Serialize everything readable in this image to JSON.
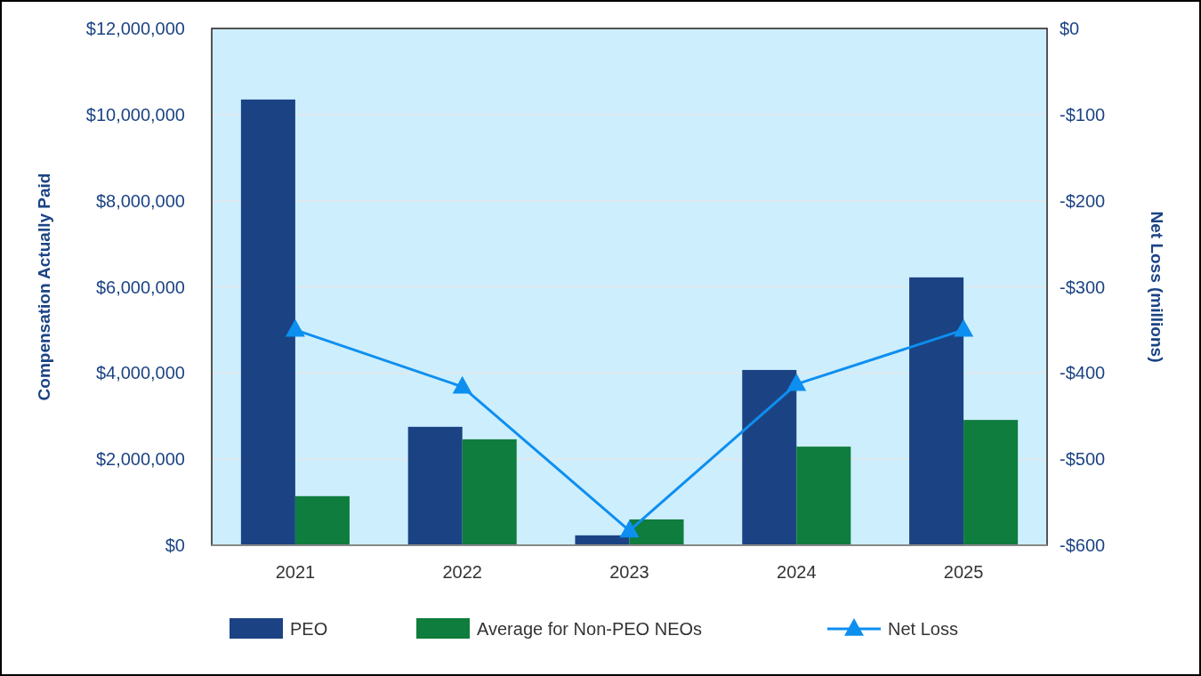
{
  "chart_data": {
    "type": "bar",
    "categories": [
      "2021",
      "2022",
      "2023",
      "2024",
      "2025"
    ],
    "ylabel": "Compensation Actually Paid",
    "y2label": "Net Loss (millions)",
    "ylim": [
      0,
      12000000
    ],
    "yticks": [
      {
        "value": 0,
        "label": "$0"
      },
      {
        "value": 2000000,
        "label": "$2,000,000"
      },
      {
        "value": 4000000,
        "label": "$4,000,000"
      },
      {
        "value": 6000000,
        "label": "$6,000,000"
      },
      {
        "value": 8000000,
        "label": "$8,000,000"
      },
      {
        "value": 10000000,
        "label": "$10,000,000"
      },
      {
        "value": 12000000,
        "label": "$12,000,000"
      }
    ],
    "y2lim": [
      -600,
      0
    ],
    "y2ticks": [
      {
        "value": -600,
        "label": "-$600"
      },
      {
        "value": -500,
        "label": "-$500"
      },
      {
        "value": -400,
        "label": "-$400"
      },
      {
        "value": -300,
        "label": "-$300"
      },
      {
        "value": -200,
        "label": "-$200"
      },
      {
        "value": -100,
        "label": "-$100"
      },
      {
        "value": 0,
        "label": "$0"
      }
    ],
    "grid": "y",
    "legend": "bottom",
    "series": [
      {
        "name": "PEO",
        "color": "#1b4384",
        "values": [
          10350000,
          2750000,
          230000,
          4070000,
          6220000
        ]
      },
      {
        "name": "Average for Non-PEO NEOs",
        "color": "#0f7d3d",
        "values": [
          1140000,
          2460000,
          600000,
          2290000,
          2910000
        ]
      },
      {
        "name": "Net Loss",
        "type": "line",
        "axis": "y2",
        "color": "#0d8ff0",
        "marker": "triangle",
        "values": [
          -350,
          -416,
          -583,
          -413,
          -350
        ]
      }
    ]
  }
}
